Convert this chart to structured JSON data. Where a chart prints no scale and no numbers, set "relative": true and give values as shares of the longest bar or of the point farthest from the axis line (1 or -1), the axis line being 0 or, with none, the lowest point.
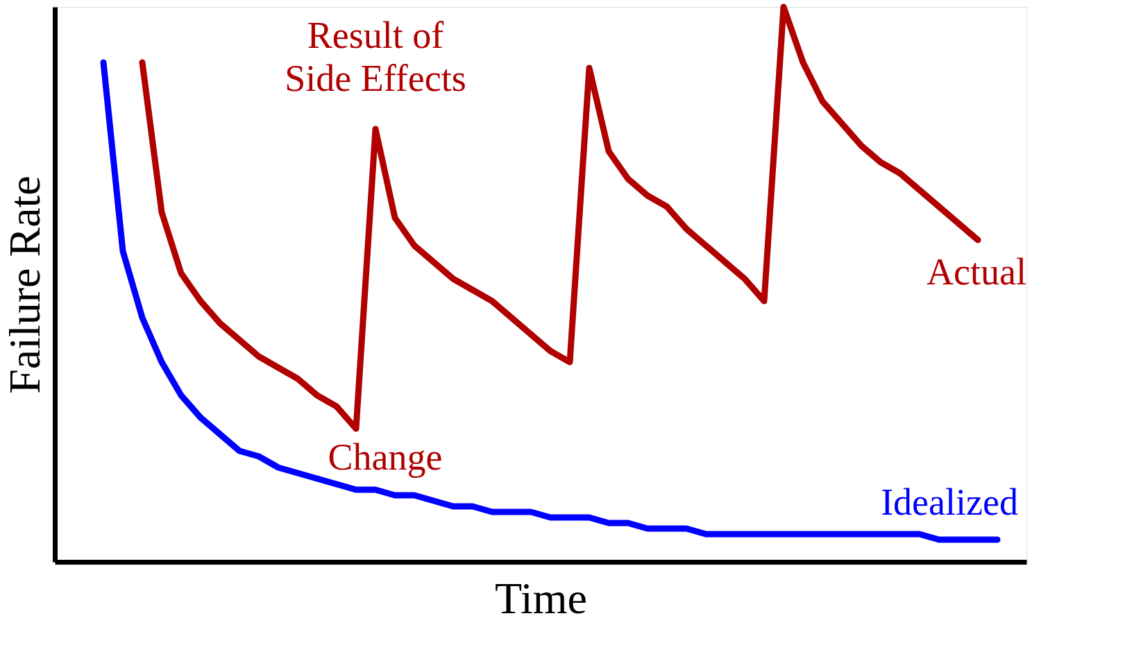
{
  "chart_data": {
    "type": "line",
    "relative": true,
    "xlabel": "Time",
    "ylabel": "Failure Rate",
    "line_style": "solid",
    "marker": "none",
    "annotations": [
      "Result of Side Effects",
      "Change"
    ],
    "categories": [
      null,
      null,
      null,
      null,
      null,
      null,
      null,
      null,
      null,
      null,
      null,
      null,
      null,
      null,
      null,
      null,
      null,
      null,
      null,
      null,
      null,
      null,
      null,
      null,
      null,
      null,
      null,
      null,
      null,
      null,
      null,
      null,
      null,
      null,
      null,
      null,
      null,
      null,
      null,
      null,
      null,
      null,
      null,
      null,
      null,
      null,
      null,
      null,
      null,
      null
    ],
    "series": [
      {
        "name": "Idealized",
        "color": "#0000ff",
        "values": [
          null,
          null,
          0.9,
          0.56,
          0.44,
          0.36,
          0.3,
          0.26,
          0.23,
          0.2,
          0.19,
          0.17,
          0.16,
          0.15,
          0.14,
          0.13,
          0.13,
          0.12,
          0.12,
          0.11,
          0.1,
          0.1,
          0.09,
          0.09,
          0.09,
          0.08,
          0.08,
          0.08,
          0.07,
          0.07,
          0.06,
          0.06,
          0.06,
          0.05,
          0.05,
          0.05,
          0.05,
          0.05,
          0.05,
          0.05,
          0.05,
          0.05,
          0.05,
          0.05,
          0.05,
          0.04,
          0.04,
          0.04,
          0.04,
          null
        ]
      },
      {
        "name": "Actual",
        "color": "#b00000",
        "values": [
          null,
          null,
          null,
          null,
          0.9,
          0.63,
          0.52,
          0.47,
          0.43,
          0.4,
          0.37,
          0.35,
          0.33,
          0.3,
          0.28,
          0.24,
          0.78,
          0.62,
          0.57,
          0.54,
          0.51,
          0.49,
          0.47,
          0.44,
          0.41,
          0.38,
          0.36,
          0.89,
          0.74,
          0.69,
          0.66,
          0.64,
          0.6,
          0.57,
          0.54,
          0.51,
          0.47,
          1.0,
          0.9,
          0.83,
          0.79,
          0.75,
          0.72,
          0.7,
          0.67,
          0.64,
          0.61,
          0.58,
          null,
          null
        ]
      }
    ]
  }
}
